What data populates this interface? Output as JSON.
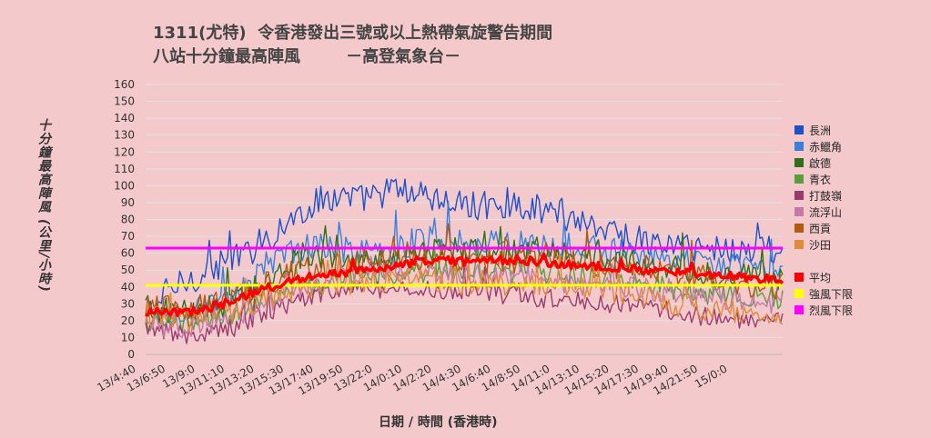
{
  "title_line1": "1311(尤特)  令香港發出三號或以上熱帶氣旋警告期間",
  "title_line2": "八站十分鐘最高陣風        －高登氣象台－",
  "chart_data": {
    "type": "line",
    "ylabel": "十分鐘最高陣風 (公里/小時)",
    "xlabel": "日期 / 時間 (香港時)",
    "ylim": [
      0,
      160
    ],
    "yticks": [
      0,
      10,
      20,
      30,
      40,
      50,
      60,
      70,
      80,
      90,
      100,
      110,
      120,
      130,
      140,
      150,
      160
    ],
    "xticks": [
      "13/4:40",
      "13/6:50",
      "13/9:0",
      "13/11:10",
      "13/13:20",
      "13/15:30",
      "13/17:40",
      "13/19:50",
      "13/22:0",
      "14/0:10",
      "14/2:20",
      "14/4:30",
      "14/6:40",
      "14/8:50",
      "14/11:0",
      "14/13:10",
      "14/15:20",
      "14/17:30",
      "14/19:40",
      "14/21:50",
      "15/0:0"
    ],
    "grid": true,
    "legend_position": "right",
    "series": [
      {
        "name": "長洲",
        "color": "#1f4fc9",
        "envelope": [
          [
            0,
            22
          ],
          [
            10,
            38
          ],
          [
            25,
            48
          ],
          [
            35,
            54
          ],
          [
            45,
            60
          ],
          [
            55,
            70
          ],
          [
            70,
            86
          ],
          [
            80,
            94
          ],
          [
            95,
            92
          ],
          [
            110,
            98
          ],
          [
            125,
            92
          ],
          [
            140,
            88
          ],
          [
            160,
            90
          ],
          [
            180,
            84
          ],
          [
            200,
            76
          ],
          [
            220,
            66
          ],
          [
            240,
            64
          ],
          [
            260,
            62
          ],
          [
            280,
            62
          ]
        ],
        "jitter": 9
      },
      {
        "name": "赤鱲角",
        "color": "#3b7fdd",
        "envelope": [
          [
            0,
            22
          ],
          [
            20,
            26
          ],
          [
            40,
            34
          ],
          [
            55,
            55
          ],
          [
            70,
            64
          ],
          [
            90,
            62
          ],
          [
            110,
            64
          ],
          [
            130,
            70
          ],
          [
            150,
            66
          ],
          [
            170,
            66
          ],
          [
            190,
            64
          ],
          [
            210,
            60
          ],
          [
            230,
            56
          ],
          [
            250,
            52
          ],
          [
            280,
            50
          ]
        ],
        "jitter": 8
      },
      {
        "name": "啟德",
        "color": "#2f6f1c",
        "envelope": [
          [
            0,
            28
          ],
          [
            20,
            24
          ],
          [
            40,
            32
          ],
          [
            55,
            48
          ],
          [
            70,
            60
          ],
          [
            90,
            56
          ],
          [
            110,
            58
          ],
          [
            130,
            62
          ],
          [
            150,
            60
          ],
          [
            170,
            62
          ],
          [
            190,
            58
          ],
          [
            210,
            56
          ],
          [
            230,
            52
          ],
          [
            250,
            48
          ],
          [
            280,
            44
          ]
        ],
        "jitter": 8
      },
      {
        "name": "青衣",
        "color": "#5a9e3a",
        "envelope": [
          [
            0,
            20
          ],
          [
            20,
            18
          ],
          [
            40,
            26
          ],
          [
            55,
            36
          ],
          [
            70,
            40
          ],
          [
            90,
            44
          ],
          [
            110,
            48
          ],
          [
            130,
            50
          ],
          [
            150,
            48
          ],
          [
            170,
            50
          ],
          [
            190,
            46
          ],
          [
            210,
            44
          ],
          [
            230,
            40
          ],
          [
            250,
            36
          ],
          [
            280,
            34
          ]
        ],
        "jitter": 7
      },
      {
        "name": "打鼓嶺",
        "color": "#9b3a6e",
        "envelope": [
          [
            0,
            14
          ],
          [
            20,
            12
          ],
          [
            40,
            16
          ],
          [
            55,
            26
          ],
          [
            70,
            34
          ],
          [
            90,
            38
          ],
          [
            110,
            40
          ],
          [
            130,
            38
          ],
          [
            150,
            36
          ],
          [
            170,
            34
          ],
          [
            190,
            32
          ],
          [
            210,
            30
          ],
          [
            230,
            26
          ],
          [
            250,
            22
          ],
          [
            280,
            20
          ]
        ],
        "jitter": 6
      },
      {
        "name": "流浮山",
        "color": "#c679a8",
        "envelope": [
          [
            0,
            18
          ],
          [
            20,
            16
          ],
          [
            40,
            22
          ],
          [
            55,
            32
          ],
          [
            70,
            42
          ],
          [
            90,
            46
          ],
          [
            110,
            50
          ],
          [
            130,
            48
          ],
          [
            150,
            46
          ],
          [
            170,
            46
          ],
          [
            190,
            42
          ],
          [
            210,
            40
          ],
          [
            230,
            38
          ],
          [
            250,
            34
          ],
          [
            280,
            30
          ]
        ],
        "jitter": 7
      },
      {
        "name": "西貢",
        "color": "#b35a0c",
        "envelope": [
          [
            0,
            30
          ],
          [
            20,
            26
          ],
          [
            40,
            34
          ],
          [
            55,
            44
          ],
          [
            70,
            52
          ],
          [
            90,
            54
          ],
          [
            110,
            58
          ],
          [
            130,
            58
          ],
          [
            150,
            56
          ],
          [
            170,
            56
          ],
          [
            190,
            54
          ],
          [
            210,
            52
          ],
          [
            230,
            48
          ],
          [
            250,
            44
          ],
          [
            280,
            40
          ]
        ],
        "jitter": 8
      },
      {
        "name": "沙田",
        "color": "#e08a3a",
        "envelope": [
          [
            0,
            24
          ],
          [
            20,
            20
          ],
          [
            40,
            26
          ],
          [
            55,
            34
          ],
          [
            70,
            40
          ],
          [
            90,
            42
          ],
          [
            110,
            44
          ],
          [
            130,
            44
          ],
          [
            150,
            42
          ],
          [
            170,
            42
          ],
          [
            190,
            40
          ],
          [
            210,
            36
          ],
          [
            230,
            30
          ],
          [
            250,
            26
          ],
          [
            280,
            24
          ]
        ],
        "jitter": 7
      },
      {
        "name": "平均",
        "color": "#ff0000",
        "envelope": [
          [
            0,
            25
          ],
          [
            20,
            25
          ],
          [
            40,
            32
          ],
          [
            55,
            40
          ],
          [
            70,
            46
          ],
          [
            90,
            49
          ],
          [
            110,
            53
          ],
          [
            125,
            56
          ],
          [
            140,
            55
          ],
          [
            160,
            56
          ],
          [
            180,
            54
          ],
          [
            200,
            52
          ],
          [
            220,
            50
          ],
          [
            240,
            48
          ],
          [
            260,
            46
          ],
          [
            280,
            44
          ]
        ],
        "jitter": 2.5
      },
      {
        "name": "強風下限",
        "color": "#ffff00",
        "constant": 41
      },
      {
        "name": "烈風下限",
        "color": "#ff00ff",
        "constant": 63
      }
    ],
    "points_per_series": 281
  }
}
